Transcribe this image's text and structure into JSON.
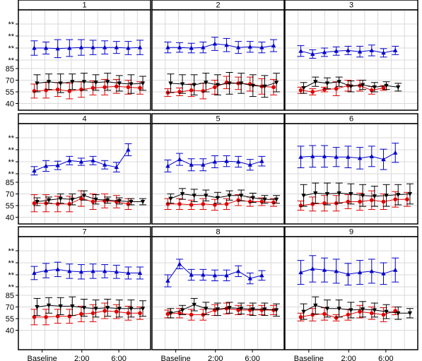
{
  "chart_data": {
    "type": "line",
    "layout": "3x3 panel grid",
    "x_tick_labels": [
      "Baseline",
      "2:00",
      "6:00"
    ],
    "y_tick_labels": {
      "top_group": [
        "**",
        "**",
        "**",
        "**"
      ],
      "lower_group": [
        "85",
        "70",
        "55",
        "40"
      ]
    },
    "grid": true,
    "error_bars": true,
    "series_colors": {
      "blue": "#0000cc",
      "black": "#000000",
      "red": "#e00000"
    },
    "series_markers": {
      "blue": "triangle",
      "black": "triangle-down",
      "red": "circle"
    },
    "panels": [
      {
        "title": "1",
        "blue": [
          [
            -1.0,
            0.6
          ],
          [
            -1.0,
            0.5
          ],
          [
            -1.05,
            0.75
          ],
          [
            -1.0,
            0.7
          ],
          [
            -0.95,
            0.65
          ],
          [
            -0.95,
            0.6
          ],
          [
            -0.95,
            0.55
          ],
          [
            -0.95,
            0.5
          ],
          [
            -1.0,
            0.55
          ],
          [
            -0.95,
            0.6
          ]
        ],
        "black": [
          [
            66,
            11
          ],
          [
            68,
            10
          ],
          [
            66,
            12
          ],
          [
            68,
            10
          ],
          [
            68,
            11
          ],
          [
            67,
            10
          ],
          [
            68,
            11
          ],
          [
            66,
            10
          ],
          [
            65,
            12
          ],
          [
            66,
            9
          ]
        ],
        "red": [
          [
            56,
            9
          ],
          [
            57,
            10
          ],
          [
            58,
            9
          ],
          [
            56,
            10
          ],
          [
            58,
            10
          ],
          [
            60,
            9
          ],
          [
            61,
            10
          ],
          [
            62,
            9
          ],
          [
            61,
            9
          ],
          [
            60,
            8
          ]
        ]
      },
      {
        "title": "2",
        "blue": [
          [
            -0.95,
            0.45
          ],
          [
            -0.95,
            0.4
          ],
          [
            -1.0,
            0.4
          ],
          [
            -0.95,
            0.45
          ],
          [
            -0.65,
            0.55
          ],
          [
            -0.75,
            0.55
          ],
          [
            -0.95,
            0.5
          ],
          [
            -0.9,
            0.45
          ],
          [
            -0.95,
            0.45
          ],
          [
            -0.8,
            0.5
          ]
        ],
        "black": [
          [
            66,
            12
          ],
          [
            65,
            12
          ],
          [
            64,
            13
          ],
          [
            67,
            12
          ],
          [
            64,
            13
          ],
          [
            66,
            14
          ],
          [
            66,
            13
          ],
          [
            63,
            14
          ],
          [
            62,
            14
          ],
          [
            67,
            12
          ]
        ],
        "red": [
          [
            54,
            5
          ],
          [
            55,
            5
          ],
          [
            57,
            8
          ],
          [
            56,
            10
          ],
          [
            61,
            9
          ],
          [
            67,
            8
          ],
          [
            66,
            8
          ],
          [
            65,
            9
          ],
          [
            62,
            10
          ],
          [
            61,
            10
          ]
        ]
      },
      {
        "title": "3",
        "blue": [
          [
            -1.25,
            0.45
          ],
          [
            -1.5,
            0.35
          ],
          [
            -1.35,
            0.35
          ],
          [
            -1.25,
            0.35
          ],
          [
            -1.2,
            0.35
          ],
          [
            -1.3,
            0.45
          ],
          [
            -1.2,
            0.45
          ],
          [
            -1.4,
            0.35
          ],
          [
            -1.2,
            0.35
          ]
        ],
        "black": [
          [
            60,
            7
          ],
          [
            68,
            6
          ],
          [
            66,
            7
          ],
          [
            68,
            6
          ],
          [
            62,
            7
          ],
          [
            64,
            6
          ],
          [
            61,
            6
          ],
          [
            63,
            5
          ],
          [
            61,
            5
          ]
        ],
        "red": [
          [
            57,
            4
          ],
          [
            55,
            4
          ],
          [
            58,
            3
          ],
          [
            59,
            9
          ],
          [
            63,
            7
          ],
          [
            63,
            7
          ],
          [
            57,
            5
          ],
          [
            60,
            3
          ]
        ]
      },
      {
        "title": "4",
        "blue": [
          [
            -1.75,
            0.35
          ],
          [
            -1.35,
            0.45
          ],
          [
            -1.3,
            0.35
          ],
          [
            -0.9,
            0.35
          ],
          [
            -1.0,
            0.3
          ],
          [
            -0.9,
            0.35
          ],
          [
            -1.25,
            0.35
          ],
          [
            -1.45,
            0.4
          ],
          [
            0.0,
            0.5
          ]
        ],
        "black": [
          [
            60,
            5
          ],
          [
            62,
            4
          ],
          [
            64,
            6
          ],
          [
            63,
            7
          ],
          [
            68,
            6
          ],
          [
            63,
            6
          ],
          [
            62,
            4
          ],
          [
            61,
            4
          ],
          [
            60,
            4
          ],
          [
            60,
            4
          ]
        ],
        "red": [
          [
            58,
            11
          ],
          [
            58,
            11
          ],
          [
            57,
            10
          ],
          [
            57,
            10
          ],
          [
            64,
            10
          ],
          [
            60,
            10
          ],
          [
            61,
            9
          ],
          [
            60,
            8
          ],
          [
            57,
            7
          ]
        ]
      },
      {
        "title": "5",
        "blue": [
          [
            -1.35,
            0.5
          ],
          [
            -0.8,
            0.5
          ],
          [
            -1.25,
            0.5
          ],
          [
            -1.25,
            0.5
          ],
          [
            -1.0,
            0.5
          ],
          [
            -0.95,
            0.45
          ],
          [
            -1.0,
            0.45
          ],
          [
            -1.25,
            0.45
          ],
          [
            -0.95,
            0.4
          ]
        ],
        "black": [
          [
            64,
            6
          ],
          [
            70,
            7
          ],
          [
            68,
            8
          ],
          [
            68,
            7
          ],
          [
            65,
            7
          ],
          [
            68,
            6
          ],
          [
            68,
            7
          ],
          [
            65,
            6
          ],
          [
            63,
            5
          ],
          [
            63,
            5
          ]
        ],
        "red": [
          [
            57,
            7
          ],
          [
            57,
            7
          ],
          [
            56,
            6
          ],
          [
            57,
            7
          ],
          [
            56,
            7
          ],
          [
            57,
            7
          ],
          [
            62,
            7
          ],
          [
            60,
            6
          ],
          [
            60,
            5
          ],
          [
            59,
            5
          ]
        ]
      },
      {
        "title": "6",
        "blue": [
          [
            -0.6,
            0.9
          ],
          [
            -0.55,
            0.9
          ],
          [
            -0.55,
            0.9
          ],
          [
            -0.6,
            0.8
          ],
          [
            -0.6,
            0.9
          ],
          [
            -0.7,
            0.9
          ],
          [
            -0.55,
            0.85
          ],
          [
            -0.8,
            0.85
          ],
          [
            -0.25,
            0.8
          ]
        ],
        "black": [
          [
            68,
            14
          ],
          [
            71,
            13
          ],
          [
            70,
            14
          ],
          [
            71,
            13
          ],
          [
            70,
            13
          ],
          [
            68,
            14
          ],
          [
            67,
            13
          ],
          [
            68,
            14
          ],
          [
            69,
            13
          ],
          [
            70,
            13
          ]
        ],
        "red": [
          [
            55,
            6
          ],
          [
            57,
            9
          ],
          [
            58,
            10
          ],
          [
            58,
            10
          ],
          [
            60,
            9
          ],
          [
            60,
            11
          ],
          [
            62,
            12
          ],
          [
            60,
            10
          ],
          [
            63,
            10
          ],
          [
            63,
            9
          ]
        ]
      },
      {
        "title": "7",
        "blue": [
          [
            -0.85,
            0.55
          ],
          [
            -0.65,
            0.6
          ],
          [
            -0.55,
            0.6
          ],
          [
            -0.7,
            0.6
          ],
          [
            -0.75,
            0.6
          ],
          [
            -0.7,
            0.6
          ],
          [
            -0.7,
            0.55
          ],
          [
            -0.75,
            0.55
          ],
          [
            -0.85,
            0.5
          ],
          [
            -0.85,
            0.5
          ]
        ],
        "black": [
          [
            70,
            11
          ],
          [
            72,
            10
          ],
          [
            71,
            11
          ],
          [
            71,
            12
          ],
          [
            69,
            11
          ],
          [
            68,
            11
          ],
          [
            69,
            11
          ],
          [
            68,
            11
          ],
          [
            68,
            11
          ],
          [
            68,
            10
          ]
        ],
        "red": [
          [
            57,
            10
          ],
          [
            57,
            10
          ],
          [
            58,
            9
          ],
          [
            58,
            9
          ],
          [
            61,
            10
          ],
          [
            62,
            11
          ],
          [
            65,
            10
          ],
          [
            64,
            9
          ],
          [
            62,
            9
          ],
          [
            62,
            8
          ]
        ]
      },
      {
        "title": "8",
        "blue": [
          [
            -1.5,
            0.5
          ],
          [
            -0.1,
            0.4
          ],
          [
            -1.0,
            0.45
          ],
          [
            -1.0,
            0.45
          ],
          [
            -1.05,
            0.45
          ],
          [
            -1.05,
            0.45
          ],
          [
            -0.7,
            0.45
          ],
          [
            -1.3,
            0.45
          ],
          [
            -1.05,
            0.4
          ]
        ],
        "black": [
          [
            62,
            6
          ],
          [
            66,
            6
          ],
          [
            73,
            8
          ],
          [
            68,
            8
          ],
          [
            67,
            8
          ],
          [
            69,
            7
          ],
          [
            68,
            7
          ],
          [
            67,
            8
          ],
          [
            67,
            8
          ],
          [
            66,
            8
          ]
        ],
        "red": [
          [
            61,
            5
          ],
          [
            62,
            6
          ],
          [
            60,
            7
          ],
          [
            60,
            7
          ],
          [
            66,
            7
          ],
          [
            68,
            7
          ],
          [
            66,
            6
          ],
          [
            66,
            6
          ],
          [
            66,
            6
          ],
          [
            66,
            6
          ]
        ]
      },
      {
        "title": "9",
        "blue": [
          [
            -0.8,
            1.0
          ],
          [
            -0.5,
            1.1
          ],
          [
            -0.6,
            1.0
          ],
          [
            -0.7,
            1.0
          ],
          [
            -0.95,
            0.9
          ],
          [
            -0.8,
            1.0
          ],
          [
            -0.7,
            1.0
          ],
          [
            -0.9,
            0.9
          ],
          [
            -0.6,
            1.0
          ]
        ],
        "black": [
          [
            64,
            10
          ],
          [
            72,
            11
          ],
          [
            68,
            11
          ],
          [
            68,
            11
          ],
          [
            66,
            10
          ],
          [
            67,
            10
          ],
          [
            66,
            9
          ],
          [
            64,
            9
          ],
          [
            62,
            8
          ],
          [
            62,
            6
          ]
        ],
        "red": [
          [
            57,
            5
          ],
          [
            60,
            8
          ],
          [
            61,
            8
          ],
          [
            56,
            4
          ],
          [
            60,
            7
          ],
          [
            64,
            8
          ],
          [
            62,
            8
          ],
          [
            60,
            9
          ],
          [
            65,
            5
          ]
        ]
      }
    ]
  }
}
